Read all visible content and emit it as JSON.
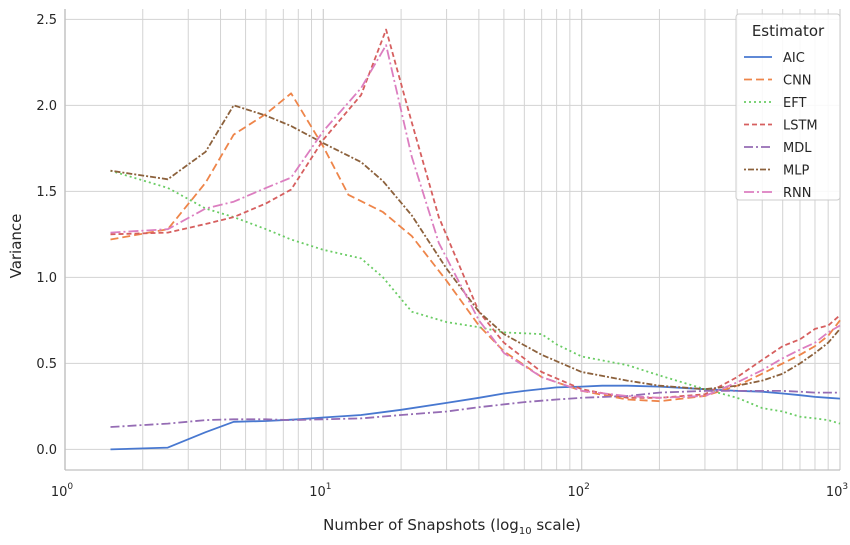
{
  "chart_data": {
    "type": "line",
    "xlabel_main": "Number of Snapshots (log",
    "xlabel_sub": "10",
    "xlabel_tail": " scale)",
    "ylabel": "Variance",
    "x_scale": "log",
    "xlim": [
      1,
      1000
    ],
    "ylim": [
      -0.12,
      2.56
    ],
    "x_ticks": [
      {
        "value": 1,
        "base": "10",
        "exp": "0"
      },
      {
        "value": 10,
        "base": "10",
        "exp": "1"
      },
      {
        "value": 100,
        "base": "10",
        "exp": "2"
      },
      {
        "value": 1000,
        "base": "10",
        "exp": "3"
      }
    ],
    "y_ticks": [
      {
        "value": 0.0,
        "label": "0.0"
      },
      {
        "value": 0.5,
        "label": "0.5"
      },
      {
        "value": 1.0,
        "label": "1.0"
      },
      {
        "value": 1.5,
        "label": "1.5"
      },
      {
        "value": 2.0,
        "label": "2.0"
      },
      {
        "value": 2.5,
        "label": "2.5"
      }
    ],
    "grid": true,
    "legend_title": "Estimator",
    "legend_position": "top-right",
    "series": [
      {
        "name": "AIC",
        "color": "#4878d0",
        "dash": "",
        "points": [
          [
            1.5,
            0.0
          ],
          [
            2.5,
            0.01
          ],
          [
            3.5,
            0.1
          ],
          [
            4.5,
            0.16
          ],
          [
            6,
            0.165
          ],
          [
            8,
            0.175
          ],
          [
            10,
            0.185
          ],
          [
            14,
            0.2
          ],
          [
            20,
            0.23
          ],
          [
            30,
            0.27
          ],
          [
            40,
            0.3
          ],
          [
            50,
            0.325
          ],
          [
            60,
            0.34
          ],
          [
            80,
            0.36
          ],
          [
            100,
            0.365
          ],
          [
            120,
            0.37
          ],
          [
            150,
            0.37
          ],
          [
            200,
            0.365
          ],
          [
            300,
            0.35
          ],
          [
            400,
            0.34
          ],
          [
            500,
            0.335
          ],
          [
            600,
            0.325
          ],
          [
            700,
            0.315
          ],
          [
            800,
            0.305
          ],
          [
            900,
            0.3
          ],
          [
            1000,
            0.295
          ]
        ]
      },
      {
        "name": "CNN",
        "color": "#ee854a",
        "dash": "8,4",
        "points": [
          [
            1.5,
            1.22
          ],
          [
            2.5,
            1.28
          ],
          [
            3.5,
            1.55
          ],
          [
            4.5,
            1.83
          ],
          [
            6,
            1.95
          ],
          [
            7.5,
            2.07
          ],
          [
            10,
            1.76
          ],
          [
            12.5,
            1.48
          ],
          [
            17,
            1.38
          ],
          [
            22,
            1.24
          ],
          [
            30,
            0.98
          ],
          [
            40,
            0.72
          ],
          [
            50,
            0.57
          ],
          [
            70,
            0.42
          ],
          [
            100,
            0.34
          ],
          [
            150,
            0.29
          ],
          [
            200,
            0.28
          ],
          [
            300,
            0.31
          ],
          [
            400,
            0.37
          ],
          [
            500,
            0.44
          ],
          [
            600,
            0.5
          ],
          [
            700,
            0.55
          ],
          [
            800,
            0.6
          ],
          [
            900,
            0.66
          ],
          [
            1000,
            0.75
          ]
        ]
      },
      {
        "name": "EFT",
        "color": "#6acc64",
        "dash": "2,3",
        "points": [
          [
            1.5,
            1.62
          ],
          [
            2.5,
            1.52
          ],
          [
            3.5,
            1.4
          ],
          [
            4.5,
            1.35
          ],
          [
            6,
            1.28
          ],
          [
            7.5,
            1.22
          ],
          [
            10,
            1.16
          ],
          [
            14,
            1.11
          ],
          [
            17,
            1.0
          ],
          [
            22,
            0.8
          ],
          [
            30,
            0.74
          ],
          [
            40,
            0.71
          ],
          [
            50,
            0.68
          ],
          [
            70,
            0.67
          ],
          [
            80,
            0.61
          ],
          [
            100,
            0.54
          ],
          [
            150,
            0.49
          ],
          [
            200,
            0.43
          ],
          [
            300,
            0.35
          ],
          [
            400,
            0.3
          ],
          [
            500,
            0.24
          ],
          [
            600,
            0.22
          ],
          [
            700,
            0.19
          ],
          [
            800,
            0.18
          ],
          [
            900,
            0.17
          ],
          [
            1000,
            0.15
          ]
        ]
      },
      {
        "name": "LSTM",
        "color": "#d65f5f",
        "dash": "5,3",
        "points": [
          [
            1.5,
            1.25
          ],
          [
            2.5,
            1.26
          ],
          [
            3.5,
            1.31
          ],
          [
            4.5,
            1.35
          ],
          [
            6,
            1.43
          ],
          [
            7.5,
            1.51
          ],
          [
            10,
            1.8
          ],
          [
            14,
            2.06
          ],
          [
            17.5,
            2.44
          ],
          [
            22,
            1.9
          ],
          [
            28,
            1.35
          ],
          [
            40,
            0.8
          ],
          [
            50,
            0.62
          ],
          [
            70,
            0.45
          ],
          [
            100,
            0.35
          ],
          [
            150,
            0.3
          ],
          [
            200,
            0.3
          ],
          [
            300,
            0.32
          ],
          [
            400,
            0.42
          ],
          [
            500,
            0.52
          ],
          [
            600,
            0.6
          ],
          [
            700,
            0.64
          ],
          [
            800,
            0.7
          ],
          [
            900,
            0.72
          ],
          [
            1000,
            0.78
          ]
        ]
      },
      {
        "name": "MDL",
        "color": "#956cb4",
        "dash": "9,3,2,3",
        "points": [
          [
            1.5,
            0.13
          ],
          [
            2.5,
            0.15
          ],
          [
            3.5,
            0.17
          ],
          [
            4.5,
            0.175
          ],
          [
            6,
            0.175
          ],
          [
            7.5,
            0.17
          ],
          [
            10,
            0.175
          ],
          [
            14,
            0.18
          ],
          [
            20,
            0.2
          ],
          [
            30,
            0.22
          ],
          [
            40,
            0.245
          ],
          [
            60,
            0.275
          ],
          [
            80,
            0.29
          ],
          [
            100,
            0.3
          ],
          [
            150,
            0.31
          ],
          [
            200,
            0.33
          ],
          [
            300,
            0.34
          ],
          [
            400,
            0.34
          ],
          [
            500,
            0.34
          ],
          [
            600,
            0.34
          ],
          [
            700,
            0.335
          ],
          [
            800,
            0.33
          ],
          [
            900,
            0.33
          ],
          [
            1000,
            0.33
          ]
        ]
      },
      {
        "name": "MLP",
        "color": "#8c613c",
        "dash": "2,2,6,2",
        "points": [
          [
            1.5,
            1.62
          ],
          [
            2.5,
            1.57
          ],
          [
            3.5,
            1.73
          ],
          [
            4.5,
            2.0
          ],
          [
            6,
            1.94
          ],
          [
            7.5,
            1.88
          ],
          [
            10,
            1.78
          ],
          [
            14,
            1.67
          ],
          [
            17,
            1.56
          ],
          [
            22,
            1.36
          ],
          [
            30,
            1.05
          ],
          [
            40,
            0.8
          ],
          [
            50,
            0.67
          ],
          [
            70,
            0.55
          ],
          [
            100,
            0.45
          ],
          [
            150,
            0.4
          ],
          [
            200,
            0.37
          ],
          [
            300,
            0.35
          ],
          [
            400,
            0.37
          ],
          [
            500,
            0.4
          ],
          [
            600,
            0.44
          ],
          [
            700,
            0.5
          ],
          [
            800,
            0.56
          ],
          [
            900,
            0.62
          ],
          [
            1000,
            0.7
          ]
        ]
      },
      {
        "name": "RNN",
        "color": "#dc7ec0",
        "dash": "10,3,2,3",
        "points": [
          [
            1.5,
            1.26
          ],
          [
            2.5,
            1.28
          ],
          [
            3.5,
            1.4
          ],
          [
            4.5,
            1.44
          ],
          [
            6,
            1.52
          ],
          [
            7.5,
            1.58
          ],
          [
            10,
            1.85
          ],
          [
            14,
            2.1
          ],
          [
            17.5,
            2.35
          ],
          [
            22,
            1.7
          ],
          [
            28,
            1.2
          ],
          [
            40,
            0.75
          ],
          [
            50,
            0.56
          ],
          [
            70,
            0.42
          ],
          [
            100,
            0.34
          ],
          [
            150,
            0.31
          ],
          [
            200,
            0.3
          ],
          [
            300,
            0.31
          ],
          [
            400,
            0.39
          ],
          [
            500,
            0.46
          ],
          [
            600,
            0.53
          ],
          [
            700,
            0.58
          ],
          [
            800,
            0.62
          ],
          [
            900,
            0.68
          ],
          [
            1000,
            0.72
          ]
        ]
      }
    ]
  }
}
